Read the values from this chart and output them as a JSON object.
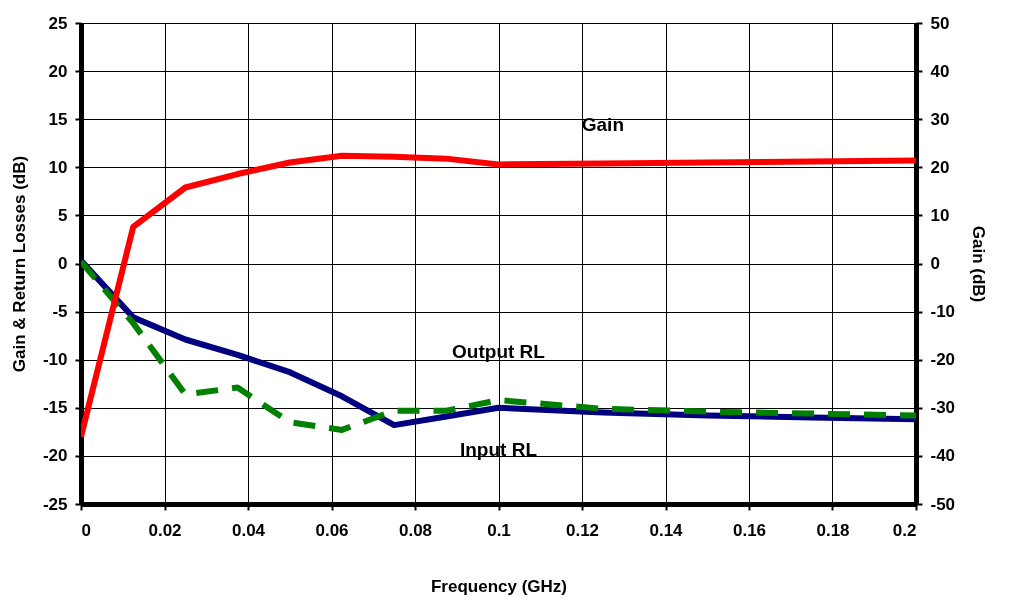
{
  "chart_data": {
    "type": "line",
    "xlabel": "Frequency (GHz)",
    "ylabel": "Gain & Return Losses (dB)",
    "y2label": "Gain (dB)",
    "x": [
      0,
      0.0125,
      0.025,
      0.0375,
      0.05,
      0.0625,
      0.075,
      0.0875,
      0.1,
      0.125,
      0.15,
      0.175,
      0.2
    ],
    "series": [
      {
        "name": "Gain",
        "color": "#ff0000",
        "axis": "y2",
        "line_style": "solid",
        "values": [
          -36,
          7.6,
          15.8,
          18.6,
          21,
          22.4,
          22.2,
          21.8,
          20.6,
          20.8,
          21,
          21.2,
          21.4
        ]
      },
      {
        "name": "Input RL",
        "color": "#000080",
        "line_style": "solid",
        "values": [
          0.3,
          -5.6,
          -7.9,
          -9.5,
          -11.3,
          -13.8,
          -16.8,
          -15.9,
          -15,
          -15.5,
          -15.8,
          -16,
          -16.2
        ]
      },
      {
        "name": "Output RL",
        "color": "#008000",
        "line_style": "dashed",
        "values": [
          0.2,
          -6.2,
          -13.6,
          -12.9,
          -16.5,
          -17.3,
          -15.3,
          -15.3,
          -14.2,
          -15.1,
          -15.4,
          -15.6,
          -15.8
        ]
      }
    ],
    "xlim": [
      0,
      0.2
    ],
    "xticks": [
      0,
      0.02,
      0.04,
      0.06,
      0.08,
      0.1,
      0.12,
      0.14,
      0.16,
      0.18,
      0.2
    ],
    "ylim": [
      -25,
      25
    ],
    "yticks": [
      -25,
      -20,
      -15,
      -10,
      -5,
      0,
      5,
      10,
      15,
      20,
      25
    ],
    "y2lim": [
      -50,
      50
    ],
    "y2ticks": [
      -50,
      -40,
      -30,
      -20,
      -10,
      0,
      10,
      20,
      30,
      40,
      50
    ],
    "grid": true,
    "marker": "none"
  }
}
